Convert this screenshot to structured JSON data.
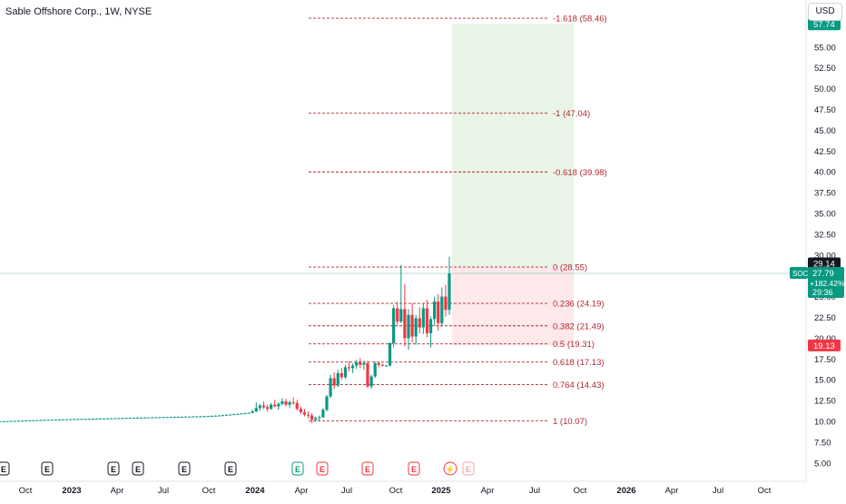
{
  "header": {
    "title": "Sable Offshore Corp., 1W, NYSE"
  },
  "currency_button": "USD",
  "colors": {
    "up": "#089981",
    "down": "#f23645",
    "fib": "#b22833",
    "target_zone": "#e9f5e6",
    "stop_zone": "#fde8ea",
    "axis_text": "#131722",
    "earnings_past": "#131722",
    "earnings_future": "#f7a2ab"
  },
  "badges": {
    "top_price": "57.74",
    "high_price": "29.14",
    "symbol": "SOC",
    "last_price": "27.79",
    "change_pct": "+182.42%",
    "countdown": "29:36",
    "low_price": "19.13"
  },
  "chart_data": {
    "type": "candlestick",
    "title": "Sable Offshore Corp., 1W, NYSE",
    "y_axis": {
      "range": [
        4.0,
        60.0
      ],
      "ticks": [
        "5.00",
        "7.50",
        "10.00",
        "12.50",
        "15.00",
        "17.50",
        "20.00",
        "22.50",
        "25.00",
        "27.50",
        "30.00",
        "32.50",
        "35.00",
        "37.50",
        "40.00",
        "42.50",
        "45.00",
        "47.50",
        "50.00",
        "52.50",
        "55.00"
      ]
    },
    "x_axis": {
      "ticks": [
        "Oct",
        "2023",
        "Apr",
        "Jul",
        "Oct",
        "2024",
        "Apr",
        "Jul",
        "Oct",
        "2025",
        "Apr",
        "Jul",
        "Oct",
        "2026",
        "Apr",
        "Jul",
        "Oct"
      ]
    },
    "fib_levels": [
      {
        "ratio": "-1.618",
        "price": 58.46,
        "label": "-1.618 (58.46)"
      },
      {
        "ratio": "-1",
        "price": 47.04,
        "label": "-1 (47.04)"
      },
      {
        "ratio": "-0.618",
        "price": 39.98,
        "label": "-0.618 (39.98)"
      },
      {
        "ratio": "0",
        "price": 28.55,
        "label": "0 (28.55)"
      },
      {
        "ratio": "0.236",
        "price": 24.19,
        "label": "0.236 (24.19)"
      },
      {
        "ratio": "0.382",
        "price": 21.49,
        "label": "0.382 (21.49)"
      },
      {
        "ratio": "0.5",
        "price": 19.31,
        "label": "0.5 (19.31)"
      },
      {
        "ratio": "0.618",
        "price": 17.13,
        "label": "0.618 (17.13)"
      },
      {
        "ratio": "0.764",
        "price": 14.43,
        "label": "0.764 (14.43)"
      },
      {
        "ratio": "1",
        "price": 10.07,
        "label": "1 (10.07)"
      }
    ],
    "position_tool": {
      "entry": 28.55,
      "target": 57.74,
      "stop": 19.13
    },
    "last_price": 27.79,
    "events": [
      {
        "type": "earnings",
        "label": "E",
        "status": "past"
      },
      {
        "type": "earnings",
        "label": "E",
        "status": "past"
      },
      {
        "type": "earnings",
        "label": "E",
        "status": "past"
      },
      {
        "type": "earnings",
        "label": "E",
        "status": "past"
      },
      {
        "type": "earnings",
        "label": "E",
        "status": "past"
      },
      {
        "type": "earnings",
        "label": "E",
        "status": "past"
      },
      {
        "type": "earnings",
        "label": "E",
        "status": "positive"
      },
      {
        "type": "earnings",
        "label": "E",
        "status": "negative"
      },
      {
        "type": "earnings",
        "label": "E",
        "status": "negative"
      },
      {
        "type": "earnings",
        "label": "E",
        "status": "negative"
      },
      {
        "type": "dividend",
        "label": "⚡",
        "status": "negative"
      },
      {
        "type": "earnings",
        "label": "E",
        "status": "upcoming"
      }
    ],
    "candles": [
      [
        10.0,
        10.02,
        9.96,
        10.01
      ],
      [
        10.01,
        10.04,
        9.98,
        10.02
      ],
      [
        10.02,
        10.05,
        9.99,
        10.03
      ],
      [
        10.03,
        10.06,
        10.0,
        10.05
      ],
      [
        10.05,
        10.08,
        10.01,
        10.06
      ],
      [
        10.06,
        10.1,
        10.02,
        10.08
      ],
      [
        10.08,
        10.12,
        10.04,
        10.09
      ],
      [
        10.09,
        10.13,
        10.05,
        10.1
      ],
      [
        10.1,
        10.14,
        10.06,
        10.12
      ],
      [
        10.12,
        10.16,
        10.08,
        10.13
      ],
      [
        10.13,
        10.17,
        10.09,
        10.15
      ],
      [
        10.15,
        10.19,
        10.1,
        10.16
      ],
      [
        10.16,
        10.2,
        10.12,
        10.18
      ],
      [
        10.18,
        10.22,
        10.14,
        10.19
      ],
      [
        10.19,
        10.23,
        10.15,
        10.2
      ],
      [
        10.2,
        10.24,
        10.16,
        10.21
      ],
      [
        10.21,
        10.25,
        10.17,
        10.22
      ],
      [
        10.22,
        10.26,
        10.18,
        10.24
      ],
      [
        10.24,
        10.28,
        10.2,
        10.25
      ],
      [
        10.25,
        10.29,
        10.21,
        10.26
      ],
      [
        10.26,
        10.3,
        10.22,
        10.27
      ],
      [
        10.27,
        10.31,
        10.23,
        10.28
      ],
      [
        10.28,
        10.32,
        10.24,
        10.29
      ],
      [
        10.29,
        10.33,
        10.25,
        10.3
      ],
      [
        10.3,
        10.34,
        10.26,
        10.31
      ],
      [
        10.31,
        10.35,
        10.27,
        10.32
      ],
      [
        10.32,
        10.36,
        10.28,
        10.33
      ],
      [
        10.33,
        10.37,
        10.29,
        10.34
      ],
      [
        10.34,
        10.38,
        10.3,
        10.35
      ],
      [
        10.35,
        10.39,
        10.31,
        10.36
      ],
      [
        10.36,
        10.4,
        10.32,
        10.37
      ],
      [
        10.37,
        10.41,
        10.33,
        10.38
      ],
      [
        10.38,
        10.42,
        10.34,
        10.39
      ],
      [
        10.39,
        10.43,
        10.35,
        10.4
      ],
      [
        10.4,
        10.44,
        10.36,
        10.41
      ],
      [
        10.41,
        10.45,
        10.37,
        10.42
      ],
      [
        10.42,
        10.46,
        10.38,
        10.43
      ],
      [
        10.43,
        10.47,
        10.39,
        10.44
      ],
      [
        10.44,
        10.48,
        10.4,
        10.45
      ],
      [
        10.45,
        10.49,
        10.41,
        10.46
      ],
      [
        10.46,
        10.5,
        10.42,
        10.47
      ],
      [
        10.47,
        10.51,
        10.43,
        10.48
      ],
      [
        10.48,
        10.52,
        10.44,
        10.49
      ],
      [
        10.49,
        10.53,
        10.45,
        10.5
      ],
      [
        10.5,
        10.54,
        10.46,
        10.51
      ],
      [
        10.51,
        10.55,
        10.47,
        10.52
      ],
      [
        10.52,
        10.56,
        10.48,
        10.53
      ],
      [
        10.53,
        10.57,
        10.49,
        10.54
      ],
      [
        10.54,
        10.58,
        10.5,
        10.55
      ],
      [
        10.55,
        10.59,
        10.51,
        10.56
      ],
      [
        10.56,
        10.6,
        10.52,
        10.57
      ],
      [
        10.57,
        10.61,
        10.53,
        10.58
      ],
      [
        10.58,
        10.62,
        10.54,
        10.59
      ],
      [
        10.59,
        10.63,
        10.55,
        10.6
      ],
      [
        10.6,
        10.64,
        10.56,
        10.61
      ],
      [
        10.61,
        10.66,
        10.57,
        10.62
      ],
      [
        10.62,
        10.68,
        10.58,
        10.64
      ],
      [
        10.64,
        10.7,
        10.6,
        10.66
      ],
      [
        10.66,
        10.72,
        10.62,
        10.68
      ],
      [
        10.68,
        10.76,
        10.64,
        10.7
      ],
      [
        10.7,
        10.8,
        10.66,
        10.74
      ],
      [
        10.74,
        10.84,
        10.7,
        10.78
      ],
      [
        10.78,
        10.88,
        10.74,
        10.82
      ],
      [
        10.82,
        10.92,
        10.78,
        10.86
      ],
      [
        10.86,
        10.96,
        10.82,
        10.9
      ],
      [
        10.9,
        11.0,
        10.86,
        10.94
      ],
      [
        10.94,
        11.04,
        10.9,
        10.98
      ],
      [
        10.98,
        11.08,
        10.94,
        11.02
      ],
      [
        11.02,
        11.4,
        10.96,
        11.2
      ],
      [
        11.2,
        12.3,
        11.1,
        11.6
      ],
      [
        11.6,
        12.1,
        11.3,
        11.9
      ],
      [
        11.9,
        12.4,
        11.5,
        11.7
      ],
      [
        11.7,
        12.0,
        11.2,
        11.5
      ],
      [
        11.5,
        12.2,
        11.4,
        12.0
      ],
      [
        12.0,
        12.6,
        11.7,
        11.8
      ],
      [
        11.8,
        12.3,
        11.4,
        12.1
      ],
      [
        12.1,
        12.8,
        11.9,
        12.4
      ],
      [
        12.4,
        12.7,
        11.8,
        12.0
      ],
      [
        12.0,
        12.5,
        11.6,
        12.3
      ],
      [
        12.3,
        12.9,
        12.0,
        12.2
      ],
      [
        12.2,
        12.6,
        11.3,
        11.5
      ],
      [
        11.5,
        11.8,
        10.9,
        11.1
      ],
      [
        11.1,
        11.5,
        10.6,
        10.8
      ],
      [
        10.8,
        11.2,
        10.4,
        10.7
      ],
      [
        10.7,
        11.0,
        9.8,
        10.2
      ],
      [
        10.2,
        10.6,
        9.9,
        10.4
      ],
      [
        10.4,
        10.7,
        10.0,
        10.5
      ],
      [
        10.5,
        11.6,
        10.4,
        11.4
      ],
      [
        11.4,
        13.2,
        11.2,
        13.0
      ],
      [
        13.0,
        15.6,
        12.8,
        15.2
      ],
      [
        15.2,
        15.9,
        13.9,
        14.3
      ],
      [
        14.3,
        16.2,
        14.1,
        15.8
      ],
      [
        15.8,
        16.4,
        15.0,
        15.3
      ],
      [
        15.3,
        16.8,
        15.1,
        16.5
      ],
      [
        16.5,
        17.2,
        16.0,
        16.4
      ],
      [
        16.4,
        17.0,
        15.8,
        16.7
      ],
      [
        16.7,
        17.4,
        16.3,
        17.1
      ],
      [
        17.1,
        17.6,
        16.4,
        16.8
      ],
      [
        16.8,
        17.3,
        16.2,
        17.0
      ],
      [
        17.0,
        17.3,
        14.0,
        14.2
      ],
      [
        14.2,
        15.6,
        13.9,
        15.4
      ],
      [
        15.4,
        17.2,
        15.2,
        17.0
      ],
      [
        17.0,
        17.1,
        16.5,
        16.8
      ],
      [
        16.8,
        16.9,
        16.6,
        16.7
      ],
      [
        16.7,
        16.8,
        16.6,
        16.7
      ],
      [
        16.7,
        19.5,
        16.6,
        19.4
      ],
      [
        19.4,
        24.0,
        18.9,
        23.6
      ],
      [
        23.6,
        24.4,
        21.6,
        22.0
      ],
      [
        22.0,
        28.8,
        21.8,
        23.5
      ],
      [
        23.5,
        26.5,
        19.0,
        20.0
      ],
      [
        20.0,
        23.5,
        18.6,
        22.8
      ],
      [
        22.8,
        24.2,
        19.5,
        20.2
      ],
      [
        20.2,
        22.8,
        19.2,
        22.4
      ],
      [
        22.4,
        23.7,
        20.6,
        21.3
      ],
      [
        21.3,
        24.2,
        20.5,
        23.6
      ],
      [
        23.6,
        24.6,
        20.1,
        20.6
      ],
      [
        20.6,
        22.6,
        18.9,
        22.3
      ],
      [
        22.3,
        25.0,
        21.5,
        24.4
      ],
      [
        24.4,
        25.3,
        20.9,
        21.8
      ],
      [
        21.8,
        26.1,
        21.4,
        25.0
      ],
      [
        25.0,
        26.4,
        22.6,
        23.4
      ],
      [
        23.4,
        29.8,
        22.8,
        27.79
      ]
    ]
  }
}
